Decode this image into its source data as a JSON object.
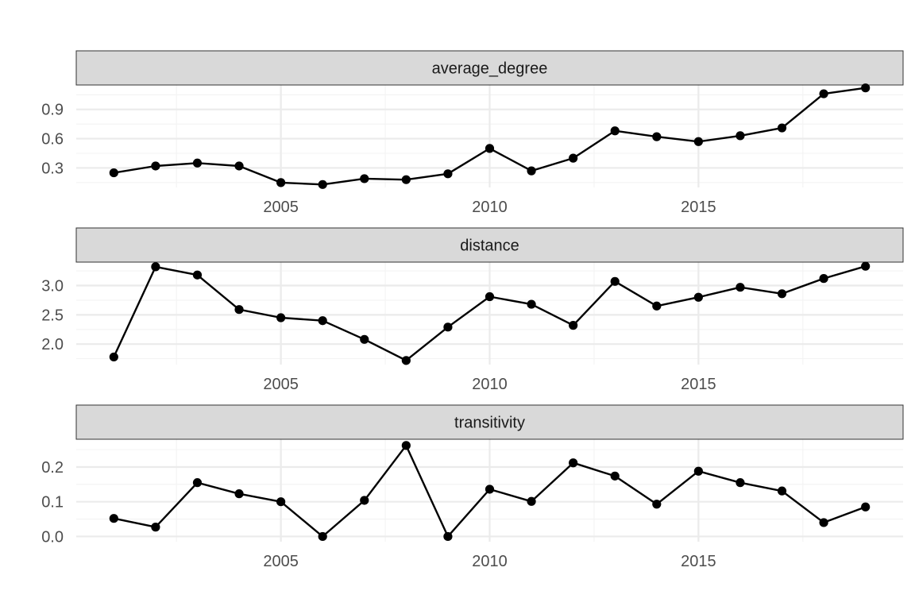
{
  "chart_data": {
    "type": "line",
    "layout": "facet_wrap, 3 rows, independent y scales",
    "x": [
      2001,
      2002,
      2003,
      2004,
      2005,
      2006,
      2007,
      2008,
      2009,
      2010,
      2011,
      2012,
      2013,
      2014,
      2015,
      2016,
      2017,
      2018,
      2019
    ],
    "xlim": [
      2000.1,
      2019.9
    ],
    "x_ticks": [
      2005,
      2010,
      2015
    ],
    "x_tick_labels": [
      "2005",
      "2010",
      "2015"
    ],
    "grid": true,
    "legend": "none",
    "panels": [
      {
        "strip_label": "average_degree",
        "ylim": [
          0.1,
          1.15
        ],
        "y_ticks": [
          0.3,
          0.6,
          0.9
        ],
        "y_tick_labels": [
          "0.3",
          "0.6",
          "0.9"
        ],
        "values": [
          0.25,
          0.32,
          0.35,
          0.32,
          0.15,
          0.13,
          0.19,
          0.18,
          0.24,
          0.5,
          0.27,
          0.4,
          0.68,
          0.62,
          0.57,
          0.63,
          0.71,
          1.06,
          1.12
        ]
      },
      {
        "strip_label": "distance",
        "ylim": [
          1.65,
          3.4
        ],
        "y_ticks": [
          2.0,
          2.5,
          3.0
        ],
        "y_tick_labels": [
          "2.0",
          "2.5",
          "3.0"
        ],
        "values": [
          1.78,
          3.32,
          3.18,
          2.59,
          2.45,
          2.4,
          2.08,
          1.72,
          2.29,
          2.81,
          2.68,
          2.32,
          3.07,
          2.65,
          2.8,
          2.97,
          2.86,
          3.12,
          3.33
        ]
      },
      {
        "strip_label": "transitivity",
        "ylim": [
          -0.015,
          0.28
        ],
        "y_ticks": [
          0.0,
          0.1,
          0.2
        ],
        "y_tick_labels": [
          "0.0",
          "0.1",
          "0.2"
        ],
        "values": [
          0.052,
          0.027,
          0.155,
          0.123,
          0.1,
          0.0,
          0.104,
          0.262,
          0.0,
          0.136,
          0.101,
          0.212,
          0.174,
          0.093,
          0.188,
          0.155,
          0.131,
          0.04,
          0.085
        ]
      }
    ]
  }
}
